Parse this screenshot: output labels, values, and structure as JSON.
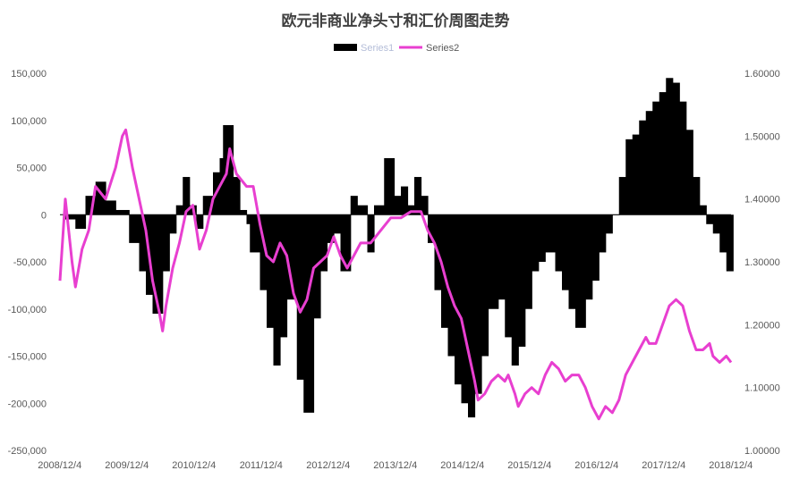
{
  "chart_data": {
    "type": "bar+line",
    "title": "欧元非商业净头寸和汇价周图走势",
    "x_ticks": [
      "2008/12/4",
      "2009/12/4",
      "2010/12/4",
      "2011/12/4",
      "2012/12/4",
      "2013/12/4",
      "2014/12/4",
      "2015/12/4",
      "2016/12/4",
      "2017/12/4",
      "2018/12/4"
    ],
    "y_left_ticks": [
      "150,000",
      "100,000",
      "50,000",
      "0",
      "-50,000",
      "-100,000",
      "-150,000",
      "-200,000",
      "-250,000"
    ],
    "y_right_ticks": [
      "1.60000",
      "1.50000",
      "1.40000",
      "1.30000",
      "1.20000",
      "1.10000",
      "1.00000"
    ],
    "ylim_left": [
      -250000,
      150000
    ],
    "ylim_right": [
      1.0,
      1.6
    ],
    "xlim": [
      2008.92,
      2018.92
    ],
    "legend": {
      "position": "top",
      "entries": [
        "Series1",
        "Series2"
      ]
    },
    "series": [
      {
        "name": "Series1",
        "type": "bar",
        "color": "#000000",
        "points": [
          [
            2009.0,
            -5000
          ],
          [
            2009.15,
            -15000
          ],
          [
            2009.3,
            20000
          ],
          [
            2009.45,
            35000
          ],
          [
            2009.6,
            15000
          ],
          [
            2009.75,
            5000
          ],
          [
            2009.95,
            -30000
          ],
          [
            2010.1,
            -60000
          ],
          [
            2010.2,
            -85000
          ],
          [
            2010.3,
            -105000
          ],
          [
            2010.45,
            -60000
          ],
          [
            2010.55,
            -20000
          ],
          [
            2010.65,
            10000
          ],
          [
            2010.75,
            40000
          ],
          [
            2010.85,
            10000
          ],
          [
            2010.95,
            -15000
          ],
          [
            2011.05,
            20000
          ],
          [
            2011.2,
            45000
          ],
          [
            2011.3,
            60000
          ],
          [
            2011.35,
            95000
          ],
          [
            2011.5,
            40000
          ],
          [
            2011.6,
            5000
          ],
          [
            2011.7,
            -10000
          ],
          [
            2011.75,
            -40000
          ],
          [
            2011.9,
            -80000
          ],
          [
            2012.0,
            -120000
          ],
          [
            2012.1,
            -160000
          ],
          [
            2012.2,
            -130000
          ],
          [
            2012.3,
            -90000
          ],
          [
            2012.45,
            -175000
          ],
          [
            2012.55,
            -210000
          ],
          [
            2012.7,
            -110000
          ],
          [
            2012.8,
            -60000
          ],
          [
            2012.9,
            -30000
          ],
          [
            2013.0,
            -20000
          ],
          [
            2013.1,
            -60000
          ],
          [
            2013.25,
            20000
          ],
          [
            2013.35,
            10000
          ],
          [
            2013.5,
            -40000
          ],
          [
            2013.6,
            10000
          ],
          [
            2013.75,
            60000
          ],
          [
            2013.9,
            20000
          ],
          [
            2014.0,
            30000
          ],
          [
            2014.1,
            10000
          ],
          [
            2014.2,
            40000
          ],
          [
            2014.3,
            20000
          ],
          [
            2014.4,
            -30000
          ],
          [
            2014.5,
            -80000
          ],
          [
            2014.6,
            -120000
          ],
          [
            2014.7,
            -150000
          ],
          [
            2014.8,
            -180000
          ],
          [
            2014.9,
            -200000
          ],
          [
            2015.0,
            -215000
          ],
          [
            2015.1,
            -190000
          ],
          [
            2015.2,
            -150000
          ],
          [
            2015.3,
            -100000
          ],
          [
            2015.45,
            -90000
          ],
          [
            2015.55,
            -130000
          ],
          [
            2015.65,
            -160000
          ],
          [
            2015.75,
            -140000
          ],
          [
            2015.85,
            -100000
          ],
          [
            2015.95,
            -60000
          ],
          [
            2016.05,
            -50000
          ],
          [
            2016.15,
            -40000
          ],
          [
            2016.3,
            -60000
          ],
          [
            2016.4,
            -80000
          ],
          [
            2016.5,
            -100000
          ],
          [
            2016.6,
            -120000
          ],
          [
            2016.75,
            -90000
          ],
          [
            2016.85,
            -70000
          ],
          [
            2016.95,
            -40000
          ],
          [
            2017.05,
            -20000
          ],
          [
            2017.15,
            0
          ],
          [
            2017.25,
            40000
          ],
          [
            2017.35,
            80000
          ],
          [
            2017.45,
            85000
          ],
          [
            2017.55,
            100000
          ],
          [
            2017.65,
            110000
          ],
          [
            2017.75,
            120000
          ],
          [
            2017.85,
            130000
          ],
          [
            2017.95,
            145000
          ],
          [
            2018.05,
            140000
          ],
          [
            2018.15,
            120000
          ],
          [
            2018.25,
            90000
          ],
          [
            2018.35,
            40000
          ],
          [
            2018.45,
            10000
          ],
          [
            2018.55,
            -10000
          ],
          [
            2018.65,
            -20000
          ],
          [
            2018.75,
            -40000
          ],
          [
            2018.85,
            -60000
          ]
        ]
      },
      {
        "name": "Series2",
        "type": "line",
        "color": "#e83fd0",
        "points": [
          [
            2008.92,
            1.27
          ],
          [
            2009.0,
            1.4
          ],
          [
            2009.1,
            1.3
          ],
          [
            2009.15,
            1.26
          ],
          [
            2009.25,
            1.32
          ],
          [
            2009.35,
            1.35
          ],
          [
            2009.45,
            1.42
          ],
          [
            2009.6,
            1.4
          ],
          [
            2009.75,
            1.45
          ],
          [
            2009.85,
            1.5
          ],
          [
            2009.9,
            1.51
          ],
          [
            2010.0,
            1.45
          ],
          [
            2010.1,
            1.4
          ],
          [
            2010.2,
            1.35
          ],
          [
            2010.3,
            1.27
          ],
          [
            2010.4,
            1.22
          ],
          [
            2010.45,
            1.19
          ],
          [
            2010.5,
            1.23
          ],
          [
            2010.6,
            1.29
          ],
          [
            2010.7,
            1.33
          ],
          [
            2010.8,
            1.38
          ],
          [
            2010.9,
            1.39
          ],
          [
            2011.0,
            1.32
          ],
          [
            2011.1,
            1.35
          ],
          [
            2011.2,
            1.4
          ],
          [
            2011.3,
            1.42
          ],
          [
            2011.4,
            1.44
          ],
          [
            2011.45,
            1.48
          ],
          [
            2011.55,
            1.44
          ],
          [
            2011.7,
            1.42
          ],
          [
            2011.8,
            1.42
          ],
          [
            2011.9,
            1.36
          ],
          [
            2012.0,
            1.31
          ],
          [
            2012.1,
            1.3
          ],
          [
            2012.2,
            1.33
          ],
          [
            2012.3,
            1.31
          ],
          [
            2012.4,
            1.25
          ],
          [
            2012.5,
            1.22
          ],
          [
            2012.6,
            1.24
          ],
          [
            2012.7,
            1.29
          ],
          [
            2012.8,
            1.3
          ],
          [
            2012.9,
            1.31
          ],
          [
            2013.0,
            1.34
          ],
          [
            2013.1,
            1.31
          ],
          [
            2013.2,
            1.29
          ],
          [
            2013.3,
            1.31
          ],
          [
            2013.4,
            1.33
          ],
          [
            2013.55,
            1.33
          ],
          [
            2013.7,
            1.35
          ],
          [
            2013.85,
            1.37
          ],
          [
            2014.0,
            1.37
          ],
          [
            2014.15,
            1.38
          ],
          [
            2014.3,
            1.38
          ],
          [
            2014.4,
            1.35
          ],
          [
            2014.5,
            1.33
          ],
          [
            2014.6,
            1.3
          ],
          [
            2014.7,
            1.26
          ],
          [
            2014.8,
            1.23
          ],
          [
            2014.9,
            1.21
          ],
          [
            2015.0,
            1.16
          ],
          [
            2015.1,
            1.11
          ],
          [
            2015.15,
            1.08
          ],
          [
            2015.25,
            1.09
          ],
          [
            2015.35,
            1.11
          ],
          [
            2015.45,
            1.12
          ],
          [
            2015.55,
            1.11
          ],
          [
            2015.6,
            1.12
          ],
          [
            2015.7,
            1.09
          ],
          [
            2015.75,
            1.07
          ],
          [
            2015.85,
            1.09
          ],
          [
            2015.95,
            1.1
          ],
          [
            2016.05,
            1.09
          ],
          [
            2016.15,
            1.12
          ],
          [
            2016.25,
            1.14
          ],
          [
            2016.35,
            1.13
          ],
          [
            2016.45,
            1.11
          ],
          [
            2016.55,
            1.12
          ],
          [
            2016.65,
            1.12
          ],
          [
            2016.75,
            1.1
          ],
          [
            2016.85,
            1.07
          ],
          [
            2016.95,
            1.05
          ],
          [
            2017.05,
            1.07
          ],
          [
            2017.15,
            1.06
          ],
          [
            2017.25,
            1.08
          ],
          [
            2017.35,
            1.12
          ],
          [
            2017.45,
            1.14
          ],
          [
            2017.55,
            1.16
          ],
          [
            2017.65,
            1.18
          ],
          [
            2017.7,
            1.17
          ],
          [
            2017.8,
            1.17
          ],
          [
            2017.9,
            1.2
          ],
          [
            2018.0,
            1.23
          ],
          [
            2018.1,
            1.24
          ],
          [
            2018.2,
            1.23
          ],
          [
            2018.3,
            1.19
          ],
          [
            2018.4,
            1.16
          ],
          [
            2018.5,
            1.16
          ],
          [
            2018.6,
            1.17
          ],
          [
            2018.65,
            1.15
          ],
          [
            2018.75,
            1.14
          ],
          [
            2018.85,
            1.15
          ],
          [
            2018.92,
            1.14
          ]
        ]
      }
    ]
  }
}
